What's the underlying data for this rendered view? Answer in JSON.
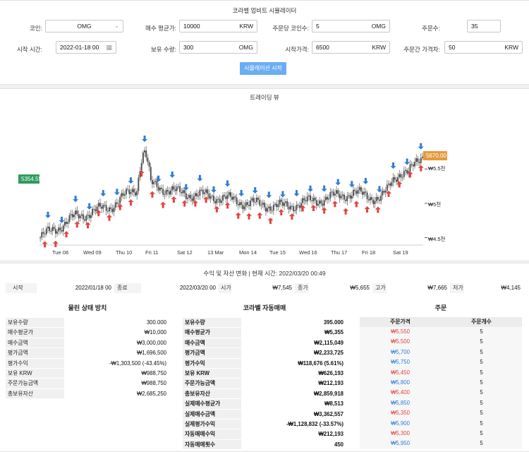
{
  "header": {
    "title": "코라벨 업비트 시뮬레이터"
  },
  "form": {
    "coin_label": "코인:",
    "coin_value": "OMG",
    "avg_label": "매수 평균가:",
    "avg_value": "10000",
    "avg_unit": "KRW",
    "per_order_label": "주문당 코인수:",
    "per_order_value": "5",
    "per_order_unit": "OMG",
    "orders_label": "주문수:",
    "orders_value": "35",
    "start_label": "시작 시간:",
    "start_value": "2022-01-18 00",
    "hold_label": "보유 수량:",
    "hold_value": "300",
    "hold_unit": "OMG",
    "start_price_label": "시작가격:",
    "start_price_value": "6500",
    "start_price_unit": "KRW",
    "gap_label": "주문간 가격차:",
    "gap_value": "50",
    "gap_unit": "KRW",
    "run_button": "시뮬레이션 시작"
  },
  "chart": {
    "title": "트레이딩 뷰",
    "left_tag": "5354.55",
    "right_tag": "5670.00",
    "y_labels": [
      "₩5.5천",
      "₩5천",
      "₩4.5천"
    ],
    "x_labels": [
      "Tue 08",
      "Wed 09",
      "Thu 10",
      "Fri 11",
      "Sat 12",
      "13 Mar",
      "Mon 14",
      "Tue 15",
      "Wed 16",
      "Thu 17",
      "Fri 18",
      "Sat 19"
    ],
    "colors": {
      "buy": "#e0453e",
      "sell": "#2e7cd6",
      "candle": "#444444"
    }
  },
  "chart_data": {
    "type": "candlestick",
    "x": [
      "Tue 08",
      "Wed 09",
      "Thu 10",
      "Fri 11",
      "Sat 12",
      "13 Mar",
      "Mon 14",
      "Tue 15",
      "Wed 16",
      "Thu 17",
      "Fri 18",
      "Sat 19"
    ],
    "y_tick_labels": [
      "₩5.5천",
      "₩5천",
      "₩4.5천"
    ],
    "ylim": [
      4350,
      6100
    ],
    "close_approx": [
      4500,
      4800,
      4950,
      5300,
      5150,
      5100,
      5000,
      4950,
      5050,
      5150,
      5050,
      5700
    ],
    "price_tags": {
      "left": 5354.55,
      "right": 5670.0
    }
  },
  "summary": {
    "title": "수익 및 자산 변화 | 현재 시간: 2022/03/20 00:49",
    "start_label": "시작",
    "start_value": "2022/01/18 00",
    "end_label": "종료",
    "end_value": "2022/03/20 00",
    "open_label": "시가",
    "open_value": "₩7,545",
    "close_label": "종가",
    "close_value": "₩5,655",
    "high_label": "고가",
    "high_value": "₩7,665",
    "low_label": "저가",
    "low_value": "₩4,145"
  },
  "left_table": {
    "title": "물린 상태 방치",
    "rows": [
      {
        "k": "보유수량",
        "v": "300.000",
        "c": ""
      },
      {
        "k": "매수평균가",
        "v": "₩10,000",
        "c": ""
      },
      {
        "k": "매수금액",
        "v": "₩3,000,000",
        "c": ""
      },
      {
        "k": "평가금액",
        "v": "₩1,696,500",
        "c": "down"
      },
      {
        "k": "평가수익",
        "v": "-₩1,303,500 (-43.45%)",
        "c": "down"
      },
      {
        "k": "보유 KRW",
        "v": "₩988,750",
        "c": ""
      },
      {
        "k": "주문가능금액",
        "v": "₩988,750",
        "c": ""
      },
      {
        "k": "총보유자산",
        "v": "₩2,685,250",
        "c": ""
      }
    ]
  },
  "mid_table": {
    "title": "코라벨 자동매매",
    "rows": [
      {
        "k": "보유수량",
        "v": "395.000",
        "c": ""
      },
      {
        "k": "매수평균가",
        "v": "₩5,355",
        "c": "up"
      },
      {
        "k": "매수금액",
        "v": "₩2,115,049",
        "c": ""
      },
      {
        "k": "평가금액",
        "v": "₩2,233,725",
        "c": ""
      },
      {
        "k": "평가수익",
        "v": "₩118,676 (5.61%)",
        "c": "up"
      },
      {
        "k": "보유 KRW",
        "v": "₩626,193",
        "c": ""
      },
      {
        "k": "주문가능금액",
        "v": "₩212,193",
        "c": ""
      },
      {
        "k": "총보유자산",
        "v": "₩2,859,918",
        "c": ""
      },
      {
        "k": "실제매수평균가",
        "v": "₩8,513",
        "c": "down"
      },
      {
        "k": "실제매수금액",
        "v": "₩3,362,557",
        "c": ""
      },
      {
        "k": "실제평가수익",
        "v": "-₩1,128,832 (-33.57%)",
        "c": "down"
      },
      {
        "k": "자동매매수익",
        "v": "₩212,193",
        "c": ""
      },
      {
        "k": "자동매매횟수",
        "v": "450",
        "c": ""
      }
    ]
  },
  "orders": {
    "title": "주문",
    "col_price": "주문가격",
    "col_count": "주문개수",
    "rows": [
      {
        "price": "₩5,550",
        "count": "5",
        "c": "up"
      },
      {
        "price": "₩5,500",
        "count": "5",
        "c": "up"
      },
      {
        "price": "₩5,700",
        "count": "5",
        "c": "down"
      },
      {
        "price": "₩5,750",
        "count": "5",
        "c": "down"
      },
      {
        "price": "₩5,450",
        "count": "5",
        "c": "up"
      },
      {
        "price": "₩5,800",
        "count": "5",
        "c": "down"
      },
      {
        "price": "₩5,400",
        "count": "5",
        "c": "up"
      },
      {
        "price": "₩5,850",
        "count": "5",
        "c": "down"
      },
      {
        "price": "₩5,350",
        "count": "5",
        "c": "up"
      },
      {
        "price": "₩5,900",
        "count": "5",
        "c": "down"
      },
      {
        "price": "₩5,300",
        "count": "5",
        "c": "up"
      },
      {
        "price": "₩5,950",
        "count": "5",
        "c": "down"
      }
    ]
  }
}
